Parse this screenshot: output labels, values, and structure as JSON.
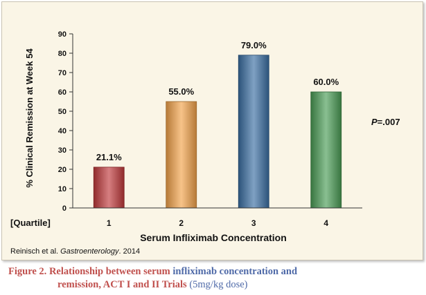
{
  "chart_data": {
    "type": "bar",
    "title": "",
    "ylabel": "% Clinical Remission at Week 54",
    "xlabel": "Serum Infliximab Concentration",
    "row_label": "[Quartile]",
    "categories": [
      "1",
      "2",
      "3",
      "4"
    ],
    "values": [
      21.1,
      55.0,
      79.0,
      60.0
    ],
    "data_labels": [
      "21.1%",
      "55.0%",
      "79.0%",
      "60.0%"
    ],
    "ylim": [
      0,
      90
    ],
    "yticks": [
      0,
      10,
      20,
      30,
      40,
      50,
      60,
      70,
      80,
      90
    ],
    "grid": false,
    "bar_colors": [
      "#c0393b",
      "#f2a24a",
      "#3a6ea3",
      "#4a9c55"
    ],
    "annotation": {
      "prefix": "P",
      "text": "=.007"
    },
    "source": {
      "prefix": "Reinisch et al. ",
      "journal": "Gastroenterology",
      "suffix": ". 2014"
    }
  },
  "caption": {
    "label": "Figure 2.",
    "part1": "Relationship between serum",
    "part2": "infliximab concentration and",
    "part3": "remission, ACT I and II Trials",
    "part4": "(5mg/kg dose)"
  }
}
